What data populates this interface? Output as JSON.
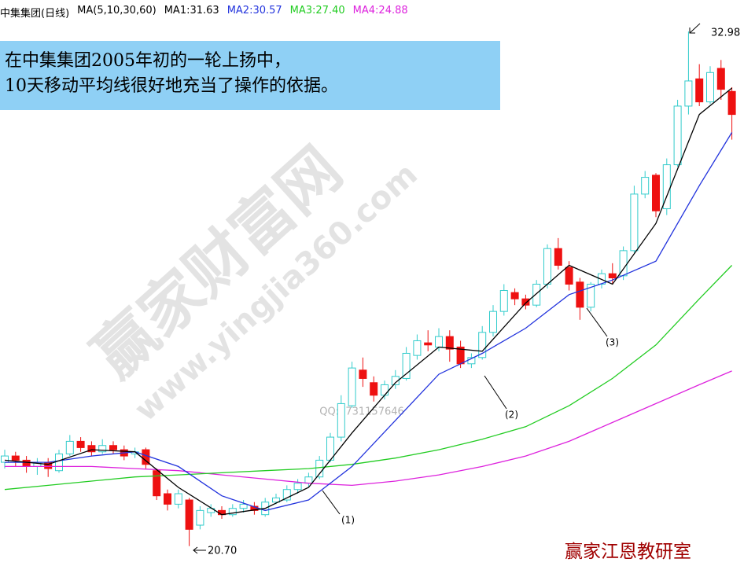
{
  "chart_data": {
    "type": "candlestick",
    "title": "中集集团(日线)",
    "indicator": "MA(5,10,30,60)",
    "ylim": [
      20.3,
      33.3
    ],
    "up_color": "#33cccc",
    "down_color": "#ee1111",
    "candles": {
      "open": [
        22.7,
        22.85,
        22.75,
        22.6,
        22.7,
        22.5,
        22.9,
        23.2,
        23.1,
        22.95,
        23.1,
        23.0,
        22.9,
        23.0,
        22.5,
        21.95,
        21.7,
        21.8,
        21.2,
        21.5,
        21.55,
        21.45,
        21.6,
        21.65,
        21.45,
        21.75,
        21.8,
        22.05,
        22.2,
        22.35,
        22.75,
        23.3,
        24.05,
        24.9,
        24.6,
        24.3,
        24.55,
        24.7,
        25.25,
        25.55,
        25.45,
        25.7,
        25.45,
        25.05,
        25.2,
        25.8,
        26.3,
        26.75,
        26.6,
        26.45,
        26.95,
        27.8,
        27.35,
        27.0,
        26.4,
        26.95,
        27.2,
        27.15,
        27.75,
        29.1,
        29.55,
        28.75,
        29.8,
        31.2,
        31.85,
        31.3,
        32.1,
        31.55
      ],
      "high": [
        23.0,
        22.95,
        22.85,
        22.8,
        22.8,
        23.0,
        23.35,
        23.3,
        23.2,
        23.25,
        23.2,
        23.1,
        23.05,
        23.05,
        22.55,
        22.05,
        22.05,
        21.85,
        21.65,
        21.7,
        21.65,
        21.7,
        21.8,
        21.75,
        21.85,
        21.95,
        22.15,
        22.3,
        22.45,
        22.85,
        23.4,
        24.3,
        25.1,
        25.2,
        24.75,
        24.65,
        24.9,
        25.45,
        25.75,
        25.85,
        25.9,
        25.85,
        25.6,
        25.3,
        25.95,
        26.45,
        26.95,
        26.85,
        26.7,
        27.05,
        27.9,
        28.05,
        27.5,
        27.1,
        27.0,
        27.3,
        27.45,
        27.85,
        29.3,
        29.65,
        29.6,
        29.95,
        31.35,
        32.98,
        32.2,
        32.15,
        32.3,
        31.65
      ],
      "low": [
        22.55,
        22.6,
        22.45,
        22.4,
        22.35,
        22.45,
        22.85,
        22.95,
        22.85,
        22.9,
        22.9,
        22.75,
        22.8,
        22.55,
        21.8,
        21.55,
        21.6,
        20.7,
        21.1,
        21.4,
        21.35,
        21.4,
        21.5,
        21.45,
        21.4,
        21.7,
        21.75,
        21.95,
        22.1,
        22.3,
        22.7,
        23.2,
        24.0,
        24.5,
        24.15,
        24.2,
        24.45,
        24.65,
        25.15,
        25.35,
        25.35,
        25.1,
        24.95,
        24.95,
        25.15,
        25.7,
        26.2,
        26.45,
        26.35,
        26.4,
        26.85,
        27.3,
        26.8,
        26.1,
        26.3,
        26.85,
        26.95,
        27.05,
        27.7,
        29.0,
        28.55,
        28.6,
        29.75,
        31.0,
        31.2,
        31.25,
        31.35,
        30.4
      ],
      "close": [
        22.85,
        22.75,
        22.6,
        22.7,
        22.55,
        22.9,
        23.2,
        23.05,
        22.95,
        23.1,
        23.0,
        22.85,
        22.95,
        22.65,
        21.9,
        21.7,
        21.95,
        21.1,
        21.55,
        21.6,
        21.45,
        21.6,
        21.7,
        21.55,
        21.75,
        21.85,
        22.05,
        22.2,
        22.35,
        22.75,
        23.3,
        24.1,
        24.95,
        24.7,
        24.3,
        24.55,
        24.75,
        25.3,
        25.6,
        25.5,
        25.7,
        25.4,
        25.05,
        25.2,
        25.8,
        26.3,
        26.8,
        26.6,
        26.45,
        26.95,
        27.8,
        27.4,
        26.95,
        26.4,
        26.95,
        27.2,
        27.1,
        27.75,
        29.1,
        29.5,
        28.7,
        29.8,
        31.2,
        31.8,
        31.3,
        32.0,
        31.6,
        31.0
      ]
    },
    "lines": [
      {
        "name": "MA1",
        "label": "MA1:31.63",
        "color": "#000000",
        "x": [
          0,
          4,
          8,
          12,
          16,
          20,
          24,
          28,
          32,
          36,
          40,
          44,
          48,
          52,
          56,
          60,
          64,
          67
        ],
        "values": [
          22.75,
          22.65,
          23.0,
          22.95,
          22.1,
          21.45,
          21.6,
          22.1,
          23.4,
          24.6,
          25.45,
          25.35,
          26.5,
          27.4,
          26.95,
          28.4,
          31.0,
          31.63
        ]
      },
      {
        "name": "MA2",
        "label": "MA2:30.57",
        "color": "#2233dd",
        "x": [
          0,
          4,
          8,
          12,
          16,
          20,
          24,
          28,
          32,
          36,
          40,
          44,
          48,
          52,
          56,
          60,
          64,
          67
        ],
        "values": [
          22.7,
          22.7,
          22.85,
          22.95,
          22.6,
          21.9,
          21.55,
          21.8,
          22.6,
          23.7,
          24.8,
          25.3,
          25.9,
          26.7,
          27.05,
          27.5,
          29.3,
          30.57
        ]
      },
      {
        "name": "MA3",
        "label": "MA3:27.40",
        "color": "#22cc22",
        "x": [
          0,
          4,
          8,
          12,
          16,
          20,
          24,
          28,
          32,
          36,
          40,
          44,
          48,
          52,
          56,
          60,
          64,
          67
        ],
        "values": [
          22.05,
          22.15,
          22.25,
          22.35,
          22.4,
          22.45,
          22.5,
          22.55,
          22.65,
          22.8,
          23.0,
          23.25,
          23.55,
          24.05,
          24.7,
          25.5,
          26.6,
          27.4
        ]
      },
      {
        "name": "MA4",
        "label": "MA4:24.88",
        "color": "#dd22dd",
        "x": [
          0,
          4,
          8,
          12,
          16,
          20,
          24,
          28,
          32,
          36,
          40,
          44,
          48,
          52,
          56,
          60,
          64,
          67
        ],
        "values": [
          22.6,
          22.6,
          22.6,
          22.55,
          22.5,
          22.4,
          22.3,
          22.2,
          22.15,
          22.25,
          22.4,
          22.6,
          22.85,
          23.2,
          23.65,
          24.1,
          24.55,
          24.88
        ]
      }
    ],
    "high_label": "32.98",
    "low_label": "20.70",
    "annotations": [
      "(1)",
      "(2)",
      "(3)"
    ],
    "info_text": [
      "在中集集团2005年初的一轮上扬中，",
      "10天移动平均线很好地充当了操作的依据。"
    ],
    "watermark": [
      "赢家财富网",
      "www.yingjia360.com",
      "QQ:1731157646"
    ],
    "footer": "赢家江恩教研室"
  }
}
